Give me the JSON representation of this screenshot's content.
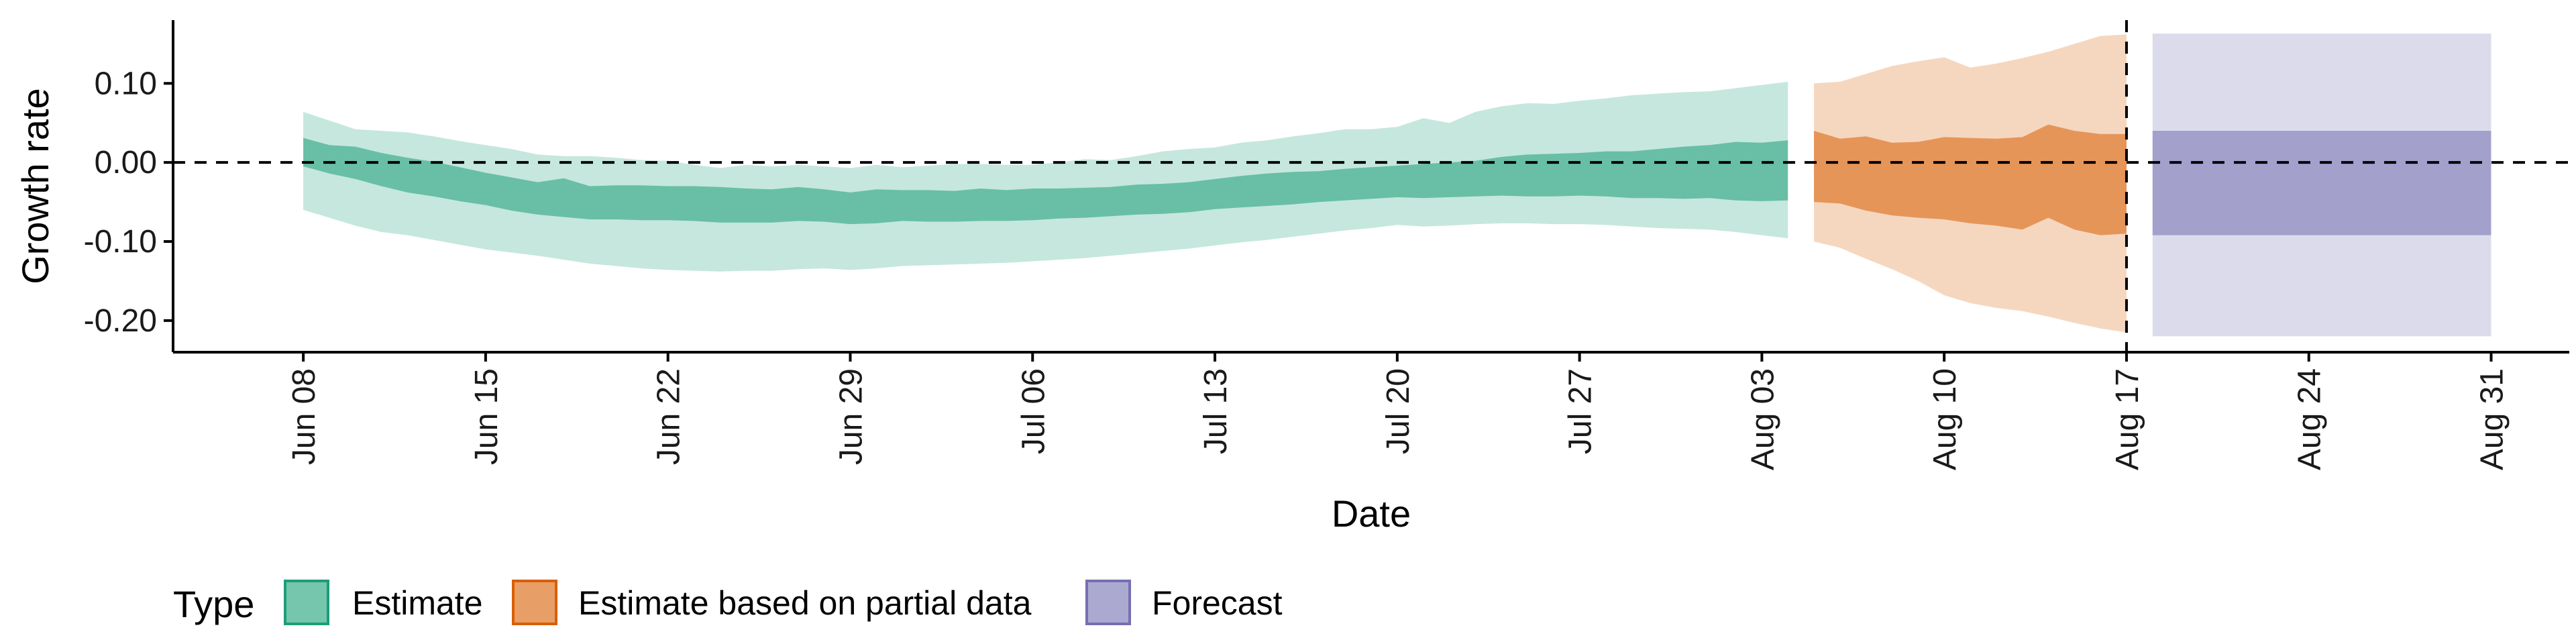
{
  "chart_data": {
    "type": "area",
    "xlabel": "Date",
    "ylabel": "Growth rate",
    "x_range": [
      "2020-06-03",
      "2020-09-03"
    ],
    "ylim": [
      -0.24,
      0.18
    ],
    "y_ticks": [
      0.1,
      0.0,
      -0.1,
      -0.2
    ],
    "y_tick_labels": [
      "0.10",
      "0.00",
      "-0.10",
      "-0.20"
    ],
    "x_ticks": [
      "2020-06-08",
      "2020-06-15",
      "2020-06-22",
      "2020-06-29",
      "2020-07-06",
      "2020-07-13",
      "2020-07-20",
      "2020-07-27",
      "2020-08-03",
      "2020-08-10",
      "2020-08-17",
      "2020-08-24",
      "2020-08-31"
    ],
    "x_tick_labels": [
      "Jun 08",
      "Jun 15",
      "Jun 22",
      "Jun 29",
      "Jul 06",
      "Jul 13",
      "Jul 20",
      "Jul 27",
      "Aug 03",
      "Aug 10",
      "Aug 17",
      "Aug 24",
      "Aug 31"
    ],
    "reference_line_y": 0,
    "reference_line_x": "2020-08-17",
    "grid": false,
    "legend_position": "bottom-left",
    "legend_title": "Type",
    "colors": {
      "Estimate": "#1b9e77",
      "Estimate based on partial data": "#d95f02",
      "Forecast": "#7570b3"
    },
    "series": [
      {
        "name": "Estimate",
        "dates": [
          "2020-06-08",
          "2020-06-09",
          "2020-06-10",
          "2020-06-11",
          "2020-06-12",
          "2020-06-13",
          "2020-06-14",
          "2020-06-15",
          "2020-06-16",
          "2020-06-17",
          "2020-06-18",
          "2020-06-19",
          "2020-06-20",
          "2020-06-21",
          "2020-06-22",
          "2020-06-23",
          "2020-06-24",
          "2020-06-25",
          "2020-06-26",
          "2020-06-27",
          "2020-06-28",
          "2020-06-29",
          "2020-06-30",
          "2020-07-01",
          "2020-07-02",
          "2020-07-03",
          "2020-07-04",
          "2020-07-05",
          "2020-07-06",
          "2020-07-07",
          "2020-07-08",
          "2020-07-09",
          "2020-07-10",
          "2020-07-11",
          "2020-07-12",
          "2020-07-13",
          "2020-07-14",
          "2020-07-15",
          "2020-07-16",
          "2020-07-17",
          "2020-07-18",
          "2020-07-19",
          "2020-07-20",
          "2020-07-21",
          "2020-07-22",
          "2020-07-23",
          "2020-07-24",
          "2020-07-25",
          "2020-07-26",
          "2020-07-27",
          "2020-07-28",
          "2020-07-29",
          "2020-07-30",
          "2020-07-31",
          "2020-08-01",
          "2020-08-02",
          "2020-08-03",
          "2020-08-04"
        ],
        "upper90": [
          0.064,
          0.053,
          0.042,
          0.04,
          0.038,
          0.033,
          0.027,
          0.022,
          0.017,
          0.01,
          0.008,
          0.008,
          0.006,
          0.003,
          0.002,
          -0.003,
          -0.007,
          -0.003,
          -0.005,
          -0.003,
          -0.005,
          -0.007,
          -0.003,
          -0.006,
          -0.004,
          -0.002,
          -0.002,
          -0.003,
          -0.003,
          0.0,
          0.004,
          0.003,
          0.008,
          0.014,
          0.017,
          0.019,
          0.025,
          0.028,
          0.033,
          0.037,
          0.042,
          0.042,
          0.045,
          0.056,
          0.05,
          0.064,
          0.071,
          0.075,
          0.074,
          0.078,
          0.081,
          0.085,
          0.087,
          0.089,
          0.09,
          0.094,
          0.098,
          0.102
        ],
        "upper50": [
          0.031,
          0.022,
          0.02,
          0.012,
          0.006,
          0.001,
          -0.006,
          -0.013,
          -0.019,
          -0.025,
          -0.02,
          -0.03,
          -0.029,
          -0.029,
          -0.03,
          -0.03,
          -0.031,
          -0.033,
          -0.034,
          -0.031,
          -0.034,
          -0.038,
          -0.034,
          -0.035,
          -0.035,
          -0.036,
          -0.033,
          -0.035,
          -0.033,
          -0.033,
          -0.032,
          -0.031,
          -0.028,
          -0.027,
          -0.025,
          -0.021,
          -0.017,
          -0.014,
          -0.012,
          -0.011,
          -0.008,
          -0.006,
          -0.004,
          -0.002,
          0.0,
          0.002,
          0.007,
          0.01,
          0.011,
          0.012,
          0.014,
          0.014,
          0.017,
          0.02,
          0.022,
          0.026,
          0.025,
          0.028
        ],
        "lower50": [
          -0.005,
          -0.014,
          -0.021,
          -0.03,
          -0.038,
          -0.043,
          -0.049,
          -0.054,
          -0.061,
          -0.066,
          -0.069,
          -0.072,
          -0.072,
          -0.073,
          -0.073,
          -0.074,
          -0.076,
          -0.076,
          -0.076,
          -0.074,
          -0.075,
          -0.078,
          -0.077,
          -0.074,
          -0.075,
          -0.075,
          -0.074,
          -0.074,
          -0.073,
          -0.071,
          -0.07,
          -0.068,
          -0.066,
          -0.065,
          -0.063,
          -0.059,
          -0.057,
          -0.055,
          -0.053,
          -0.05,
          -0.048,
          -0.046,
          -0.044,
          -0.045,
          -0.044,
          -0.043,
          -0.042,
          -0.043,
          -0.043,
          -0.042,
          -0.043,
          -0.045,
          -0.045,
          -0.046,
          -0.045,
          -0.048,
          -0.049,
          -0.048
        ],
        "lower90": [
          -0.06,
          -0.07,
          -0.08,
          -0.088,
          -0.092,
          -0.098,
          -0.104,
          -0.11,
          -0.114,
          -0.118,
          -0.123,
          -0.128,
          -0.131,
          -0.134,
          -0.136,
          -0.137,
          -0.138,
          -0.137,
          -0.137,
          -0.135,
          -0.134,
          -0.136,
          -0.134,
          -0.131,
          -0.13,
          -0.129,
          -0.128,
          -0.127,
          -0.125,
          -0.123,
          -0.121,
          -0.118,
          -0.115,
          -0.112,
          -0.109,
          -0.105,
          -0.101,
          -0.098,
          -0.094,
          -0.09,
          -0.086,
          -0.083,
          -0.079,
          -0.081,
          -0.08,
          -0.078,
          -0.077,
          -0.077,
          -0.078,
          -0.078,
          -0.079,
          -0.081,
          -0.083,
          -0.084,
          -0.085,
          -0.088,
          -0.092,
          -0.096
        ]
      },
      {
        "name": "Estimate based on partial data",
        "dates": [
          "2020-08-05",
          "2020-08-06",
          "2020-08-07",
          "2020-08-08",
          "2020-08-09",
          "2020-08-10",
          "2020-08-11",
          "2020-08-12",
          "2020-08-13",
          "2020-08-14",
          "2020-08-15",
          "2020-08-16",
          "2020-08-17"
        ],
        "upper90": [
          0.1,
          0.102,
          0.112,
          0.122,
          0.128,
          0.133,
          0.12,
          0.125,
          0.132,
          0.14,
          0.15,
          0.16,
          0.162
        ],
        "upper50": [
          0.04,
          0.03,
          0.033,
          0.025,
          0.026,
          0.032,
          0.031,
          0.03,
          0.032,
          0.048,
          0.04,
          0.036,
          0.036
        ],
        "lower50": [
          -0.05,
          -0.052,
          -0.061,
          -0.067,
          -0.07,
          -0.072,
          -0.077,
          -0.08,
          -0.085,
          -0.07,
          -0.085,
          -0.092,
          -0.09
        ],
        "lower90": [
          -0.1,
          -0.108,
          -0.122,
          -0.135,
          -0.15,
          -0.168,
          -0.178,
          -0.184,
          -0.188,
          -0.195,
          -0.203,
          -0.21,
          -0.215
        ]
      },
      {
        "name": "Forecast",
        "dates": [
          "2020-08-18",
          "2020-08-31"
        ],
        "upper90": [
          0.163,
          0.163
        ],
        "upper50": [
          0.04,
          0.04
        ],
        "lower50": [
          -0.092,
          -0.092
        ],
        "lower90": [
          -0.22,
          -0.22
        ]
      }
    ]
  }
}
